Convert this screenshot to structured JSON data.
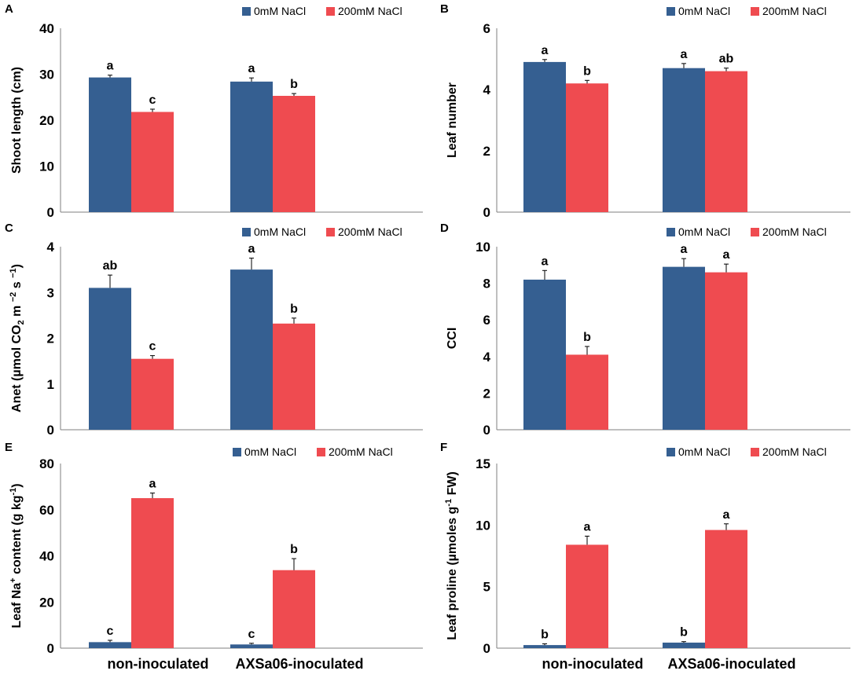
{
  "legend": [
    "0mM NaCl",
    "200mM NaCl"
  ],
  "colors": {
    "series0": "#355F91",
    "series1": "#EF4B50",
    "axis": "#7F7F7F",
    "text": "#000000"
  },
  "categories": [
    "non-inoculated",
    "AXSa06-inoculated"
  ],
  "chart_data": [
    {
      "panel": "A",
      "type": "bar",
      "ylabel": "Shoot length (cm)",
      "ylim": [
        0,
        40
      ],
      "yticks": [
        0,
        10,
        20,
        30,
        40
      ],
      "categories": [
        "non-inoculated",
        "AXSa06-inoculated"
      ],
      "legend_position": "top-right",
      "series": [
        {
          "name": "0mM NaCl",
          "values": [
            29.3,
            28.4
          ],
          "errors": [
            0.5,
            0.8
          ],
          "letters": [
            "a",
            "a"
          ]
        },
        {
          "name": "200mM NaCl",
          "values": [
            21.8,
            25.3
          ],
          "errors": [
            0.6,
            0.5
          ],
          "letters": [
            "c",
            "b"
          ]
        }
      ]
    },
    {
      "panel": "B",
      "type": "bar",
      "ylabel": "Leaf number",
      "ylim": [
        0,
        6
      ],
      "yticks": [
        0,
        2,
        4,
        6
      ],
      "categories": [
        "non-inoculated",
        "AXSa06-inoculated"
      ],
      "legend_position": "top-right",
      "series": [
        {
          "name": "0mM NaCl",
          "values": [
            4.9,
            4.7
          ],
          "errors": [
            0.08,
            0.15
          ],
          "letters": [
            "a",
            "a"
          ]
        },
        {
          "name": "200mM NaCl",
          "values": [
            4.2,
            4.6
          ],
          "errors": [
            0.1,
            0.1
          ],
          "letters": [
            "b",
            "ab"
          ]
        }
      ]
    },
    {
      "panel": "C",
      "type": "bar",
      "ylabel_prefix": "Anet (µmol CO",
      "ylabel_mid": " m ",
      "ylabel_end": " s ",
      "ylabel_sub": "2",
      "ylabel_sup1": "−2",
      "ylabel_sup2": "−1",
      "ylabel_close": ")",
      "ylim": [
        0,
        4
      ],
      "yticks": [
        0,
        1,
        2,
        3,
        4
      ],
      "categories": [
        "non-inoculated",
        "AXSa06-inoculated"
      ],
      "legend_position": "top-right",
      "series": [
        {
          "name": "0mM NaCl",
          "values": [
            3.1,
            3.5
          ],
          "errors": [
            0.28,
            0.25
          ],
          "letters": [
            "ab",
            "a"
          ]
        },
        {
          "name": "200mM NaCl",
          "values": [
            1.55,
            2.32
          ],
          "errors": [
            0.07,
            0.12
          ],
          "letters": [
            "c",
            "b"
          ]
        }
      ]
    },
    {
      "panel": "D",
      "type": "bar",
      "ylabel": "CCI",
      "ylim": [
        0,
        10
      ],
      "yticks": [
        0,
        2,
        4,
        6,
        8,
        10
      ],
      "categories": [
        "non-inoculated",
        "AXSa06-inoculated"
      ],
      "legend_position": "top-right",
      "series": [
        {
          "name": "0mM NaCl",
          "values": [
            8.2,
            8.9
          ],
          "errors": [
            0.5,
            0.45
          ],
          "letters": [
            "a",
            "a"
          ]
        },
        {
          "name": "200mM NaCl",
          "values": [
            4.1,
            8.6
          ],
          "errors": [
            0.45,
            0.45
          ],
          "letters": [
            "b",
            "a"
          ]
        }
      ]
    },
    {
      "panel": "E",
      "type": "bar",
      "ylabel_prefix": "Leaf Na",
      "ylabel_sup1": "+",
      "ylabel_mid": " content (g kg",
      "ylabel_sup2": "-1",
      "ylabel_close": ")",
      "ylim": [
        0,
        80
      ],
      "yticks": [
        0,
        20,
        40,
        60,
        80
      ],
      "categories": [
        "non-inoculated",
        "AXSa06-inoculated"
      ],
      "legend_position": "top-right",
      "series": [
        {
          "name": "0mM NaCl",
          "values": [
            2.6,
            1.6
          ],
          "errors": [
            0.8,
            0.5
          ],
          "letters": [
            "c",
            "c"
          ]
        },
        {
          "name": "200mM NaCl",
          "values": [
            65,
            33.8
          ],
          "errors": [
            2.2,
            5
          ],
          "letters": [
            "a",
            "b"
          ]
        }
      ]
    },
    {
      "panel": "F",
      "type": "bar",
      "ylabel_prefix": "Leaf proline (µmoles g",
      "ylabel_sup1": "-1",
      "ylabel_mid": " FW)",
      "ylim": [
        0,
        15
      ],
      "yticks": [
        0,
        5,
        10,
        15
      ],
      "categories": [
        "non-inoculated",
        "AXSa06-inoculated"
      ],
      "legend_position": "top-right",
      "series": [
        {
          "name": "0mM NaCl",
          "values": [
            0.25,
            0.45
          ],
          "errors": [
            0.1,
            0.08
          ],
          "letters": [
            "b",
            "b"
          ]
        },
        {
          "name": "200mM NaCl",
          "values": [
            8.4,
            9.6
          ],
          "errors": [
            0.7,
            0.5
          ],
          "letters": [
            "a",
            "a"
          ]
        }
      ]
    }
  ]
}
